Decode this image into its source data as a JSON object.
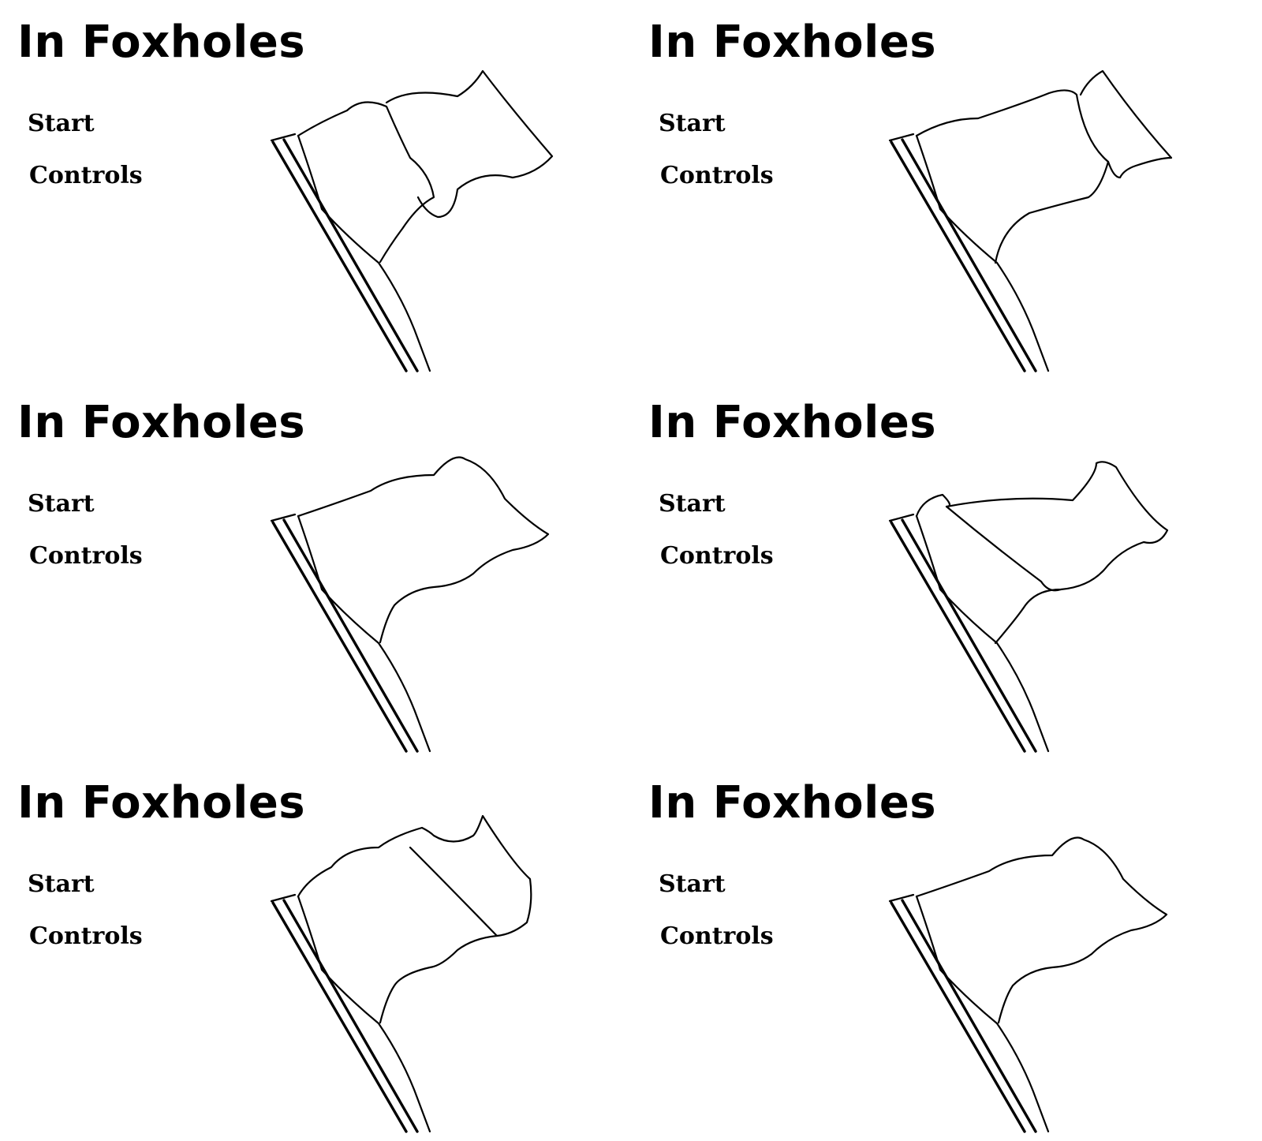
{
  "screens": [
    {
      "title": "In Foxholes",
      "menu": {
        "start": "Start",
        "controls": "Controls"
      },
      "flag_pose": "fold-top-right-large"
    },
    {
      "title": "In Foxholes",
      "menu": {
        "start": "Start",
        "controls": "Controls"
      },
      "flag_pose": "fold-top-right-small"
    },
    {
      "title": "In Foxholes",
      "menu": {
        "start": "Start",
        "controls": "Controls"
      },
      "flag_pose": "flat"
    },
    {
      "title": "In Foxholes",
      "menu": {
        "start": "Start",
        "controls": "Controls"
      },
      "flag_pose": "fold-left-triangle"
    },
    {
      "title": "In Foxholes",
      "menu": {
        "start": "Start",
        "controls": "Controls"
      },
      "flag_pose": "fold-right-panel"
    },
    {
      "title": "In Foxholes",
      "menu": {
        "start": "Start",
        "controls": "Controls"
      },
      "flag_pose": "flat"
    }
  ],
  "colors": {
    "background": "#ffffff",
    "ink": "#000000"
  },
  "icons": {
    "flag": "waving-flag-icon"
  }
}
